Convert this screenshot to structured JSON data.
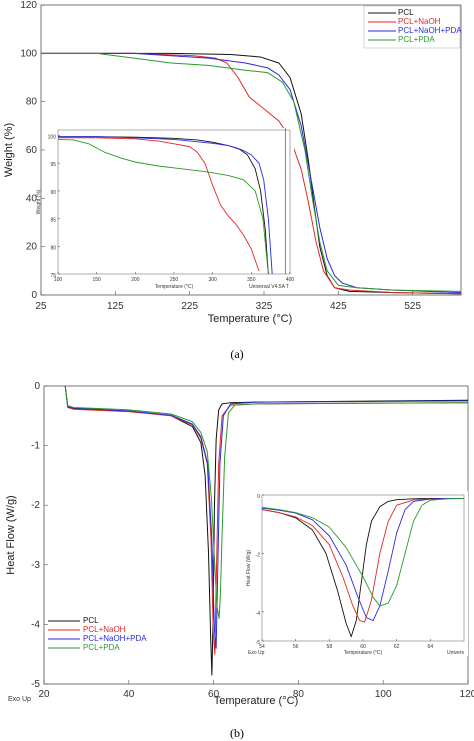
{
  "colors": {
    "PCL": "#111111",
    "PCL+NaOH": "#e32626",
    "PCL+NaOH+PDA": "#2a2ae0",
    "PCL+PDA": "#2a9a2a"
  },
  "chart_data": [
    {
      "id": "a",
      "type": "line",
      "caption": "(a)",
      "xlabel": "Temperature (°C)",
      "ylabel": "Weight (%)",
      "xlim": [
        25,
        590
      ],
      "ylim": [
        0,
        120
      ],
      "xticks": [
        25,
        125,
        225,
        325,
        425,
        525
      ],
      "yticks": [
        0,
        20,
        40,
        60,
        80,
        100,
        120
      ],
      "legend": "top-right",
      "series": [
        {
          "name": "PCL",
          "x": [
            25,
            100,
            200,
            280,
            320,
            345,
            360,
            375,
            385,
            392,
            400,
            410,
            420,
            440,
            500,
            590
          ],
          "y": [
            100,
            100,
            100,
            99.5,
            98.5,
            96,
            90,
            75,
            55,
            38,
            20,
            8,
            3,
            1.5,
            1,
            0.5
          ]
        },
        {
          "name": "PCL+NaOH",
          "x": [
            25,
            150,
            230,
            260,
            275,
            290,
            305,
            325,
            345,
            360,
            375,
            385,
            395,
            405,
            420,
            440,
            500,
            590
          ],
          "y": [
            100,
            100,
            99,
            98,
            96,
            90,
            82,
            77,
            72,
            65,
            52,
            38,
            22,
            10,
            3,
            2,
            1,
            0.5
          ]
        },
        {
          "name": "PCL+NaOH+PDA",
          "x": [
            25,
            150,
            250,
            300,
            330,
            345,
            360,
            375,
            390,
            400,
            410,
            420,
            430,
            450,
            500,
            590
          ],
          "y": [
            100,
            100,
            98,
            96,
            94,
            91,
            85,
            70,
            45,
            28,
            15,
            8,
            5,
            3,
            2,
            1
          ]
        },
        {
          "name": "PCL+PDA",
          "x": [
            25,
            100,
            150,
            200,
            250,
            300,
            330,
            350,
            365,
            380,
            390,
            400,
            410,
            425,
            450,
            500,
            590
          ],
          "y": [
            100,
            100,
            98,
            96,
            95,
            93,
            92,
            88,
            80,
            60,
            40,
            22,
            10,
            4,
            3,
            2,
            1.5
          ]
        }
      ],
      "inset": {
        "xlabel": "Temperature (°C)",
        "ylabel": "Weight (%)",
        "note": "Universal V4.5A T",
        "xlim": [
          100,
          400
        ],
        "ylim": [
          75,
          101
        ],
        "xticks": [
          100,
          150,
          200,
          250,
          300,
          350,
          400
        ],
        "yticks": [
          75,
          80,
          85,
          90,
          95,
          100
        ],
        "series": [
          {
            "name": "PCL",
            "x": [
              100,
              150,
              200,
              250,
              280,
              300,
              320,
              335,
              345,
              355,
              362,
              368,
              372
            ],
            "y": [
              99.8,
              99.8,
              99.7,
              99.5,
              99.2,
              98.8,
              98.2,
              97.5,
              96.5,
              94,
              90,
              83,
              75
            ]
          },
          {
            "name": "PCL+NaOH",
            "x": [
              100,
              150,
              200,
              230,
              250,
              270,
              280,
              290,
              300,
              310,
              320,
              330,
              340,
              350,
              360
            ],
            "y": [
              99.6,
              99.6,
              99.4,
              99,
              98.5,
              98,
              97,
              95,
              91,
              87.5,
              85.5,
              84,
              82,
              79.5,
              75.5
            ]
          },
          {
            "name": "PCL+NaOH+PDA",
            "x": [
              100,
              150,
              200,
              250,
              300,
              320,
              330,
              340,
              350,
              360,
              366,
              372,
              377
            ],
            "y": [
              99.8,
              99.8,
              99.6,
              99.3,
              98.6,
              98.2,
              97.8,
              97.3,
              96.5,
              95,
              92,
              85,
              75
            ]
          },
          {
            "name": "PCL+PDA",
            "x": [
              100,
              120,
              140,
              160,
              180,
              200,
              230,
              260,
              290,
              320,
              340,
              355,
              365,
              372
            ],
            "y": [
              99.3,
              99.2,
              98.5,
              97,
              96,
              95.2,
              94.5,
              94,
              93.5,
              92.8,
              92,
              90,
              85,
              75
            ]
          }
        ]
      }
    },
    {
      "id": "b",
      "type": "line",
      "caption": "(b)",
      "xlabel": "Temperature (°C)",
      "ylabel": "Heat Flow (W/g)",
      "corner_label": "Exo Up",
      "xlim": [
        20,
        120
      ],
      "ylim": [
        -5,
        0
      ],
      "xticks": [
        20,
        40,
        60,
        80,
        100,
        120
      ],
      "yticks": [
        -5,
        -4,
        -3,
        -2,
        -1,
        0
      ],
      "legend": "bottom-left",
      "series": [
        {
          "name": "PCL",
          "x": [
            25,
            25.6,
            27,
            40,
            50,
            55,
            57,
            58,
            58.8,
            59.3,
            59.6,
            59.9,
            60.2,
            60.6,
            61.2,
            62,
            64,
            70,
            120
          ],
          "y": [
            0,
            -0.35,
            -0.38,
            -0.42,
            -0.5,
            -0.68,
            -0.95,
            -1.5,
            -2.8,
            -4.2,
            -4.85,
            -3.8,
            -2,
            -0.9,
            -0.4,
            -0.3,
            -0.28,
            -0.27,
            -0.24
          ]
        },
        {
          "name": "PCL+NaOH",
          "x": [
            25,
            25.6,
            27,
            40,
            50,
            55,
            57,
            58.5,
            59.4,
            59.9,
            60.3,
            60.7,
            61.2,
            62,
            64,
            70,
            120
          ],
          "y": [
            0,
            -0.36,
            -0.39,
            -0.43,
            -0.5,
            -0.65,
            -0.88,
            -1.3,
            -2.6,
            -4.1,
            -4.5,
            -3,
            -1.3,
            -0.5,
            -0.32,
            -0.3,
            -0.28
          ]
        },
        {
          "name": "PCL+NaOH+PDA",
          "x": [
            25,
            25.6,
            27,
            40,
            50,
            55,
            57,
            58.6,
            59.6,
            60.2,
            60.6,
            61,
            61.5,
            62.3,
            64,
            70,
            120
          ],
          "y": [
            0,
            -0.34,
            -0.37,
            -0.42,
            -0.49,
            -0.64,
            -0.85,
            -1.3,
            -2.6,
            -4.1,
            -4.4,
            -3,
            -1.3,
            -0.5,
            -0.3,
            -0.27,
            -0.25
          ]
        },
        {
          "name": "PCL+PDA",
          "x": [
            25,
            25.6,
            27,
            40,
            50,
            55,
            57,
            58.5,
            59.5,
            60.2,
            60.8,
            61.3,
            61.6,
            62,
            62.6,
            63.5,
            65,
            70,
            120
          ],
          "y": [
            0,
            -0.33,
            -0.36,
            -0.4,
            -0.47,
            -0.6,
            -0.78,
            -1.1,
            -1.9,
            -2.9,
            -3.7,
            -3.9,
            -3.5,
            -2.5,
            -1.2,
            -0.45,
            -0.32,
            -0.3,
            -0.28
          ]
        }
      ],
      "inset": {
        "xlabel": "Temperature (°C)",
        "ylabel": "Heat Flow (W/g)",
        "corner_label": "Exo Up",
        "note": "Univers",
        "xlim": [
          54,
          66
        ],
        "ylim": [
          -5,
          0
        ],
        "xticks": [
          54,
          56,
          58,
          60,
          62,
          64
        ],
        "yticks": [
          -5,
          -4,
          -2,
          0
        ],
        "series": [
          {
            "name": "PCL",
            "x": [
              54,
              55,
              56,
              57,
              57.8,
              58.5,
              59,
              59.3,
              59.6,
              59.9,
              60.2,
              60.5,
              61,
              61.5,
              62,
              63,
              64,
              65,
              66
            ],
            "y": [
              -0.5,
              -0.6,
              -0.78,
              -1.2,
              -2,
              -3.3,
              -4.4,
              -4.85,
              -4.3,
              -3,
              -1.7,
              -0.9,
              -0.4,
              -0.22,
              -0.16,
              -0.13,
              -0.12,
              -0.12,
              -0.12
            ]
          },
          {
            "name": "PCL+NaOH",
            "x": [
              54,
              55,
              56,
              57,
              58,
              58.8,
              59.4,
              59.8,
              60.1,
              60.5,
              61,
              61.5,
              62,
              63,
              64,
              65,
              66
            ],
            "y": [
              -0.5,
              -0.6,
              -0.75,
              -1.05,
              -1.7,
              -2.8,
              -3.8,
              -4.3,
              -4.35,
              -3.6,
              -2,
              -0.9,
              -0.35,
              -0.17,
              -0.13,
              -0.12,
              -0.12
            ]
          },
          {
            "name": "PCL+NaOH+PDA",
            "x": [
              54,
              55,
              56,
              57,
              58,
              59,
              59.7,
              60.2,
              60.6,
              61,
              61.5,
              62,
              62.5,
              63,
              64,
              65,
              66
            ],
            "y": [
              -0.45,
              -0.52,
              -0.62,
              -0.85,
              -1.4,
              -2.4,
              -3.5,
              -4.2,
              -4.3,
              -3.8,
              -2.6,
              -1.3,
              -0.5,
              -0.22,
              -0.14,
              -0.12,
              -0.12
            ]
          },
          {
            "name": "PCL+PDA",
            "x": [
              54,
              55,
              56,
              57,
              58,
              59,
              60,
              60.6,
              61,
              61.5,
              62,
              62.5,
              63,
              63.5,
              64,
              65,
              66
            ],
            "y": [
              -0.42,
              -0.5,
              -0.6,
              -0.78,
              -1.1,
              -1.8,
              -2.8,
              -3.5,
              -3.8,
              -3.7,
              -3.1,
              -2,
              -0.9,
              -0.35,
              -0.18,
              -0.13,
              -0.12
            ]
          }
        ]
      }
    }
  ]
}
